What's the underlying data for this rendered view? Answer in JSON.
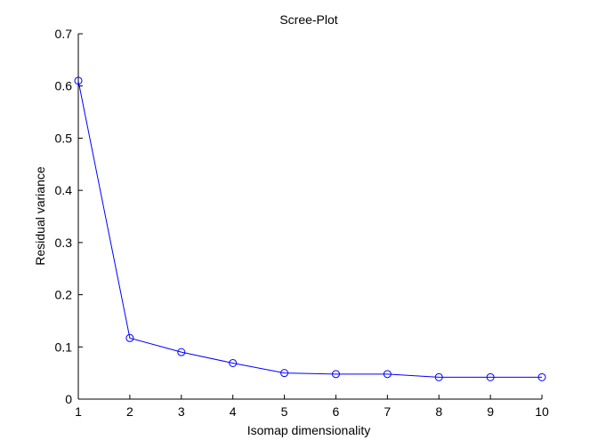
{
  "chart_data": {
    "type": "line",
    "title": "Scree-Plot",
    "xlabel": "Isomap dimensionality",
    "ylabel": "Residual variance",
    "x": [
      1,
      2,
      3,
      4,
      5,
      6,
      7,
      8,
      9,
      10
    ],
    "series": [
      {
        "values": [
          0.61,
          0.117,
          0.09,
          0.069,
          0.05,
          0.048,
          0.048,
          0.042,
          0.042,
          0.042
        ]
      }
    ],
    "xlim": [
      1,
      10
    ],
    "ylim": [
      0,
      0.7
    ],
    "xticks": [
      "1",
      "2",
      "3",
      "4",
      "5",
      "6",
      "7",
      "8",
      "9",
      "10"
    ],
    "yticks": [
      "0",
      "0.1",
      "0.2",
      "0.3",
      "0.4",
      "0.5",
      "0.6",
      "0.7"
    ],
    "marker": "circle",
    "grid": false,
    "line_color": "#0000ff",
    "axis_color": "#000000"
  }
}
